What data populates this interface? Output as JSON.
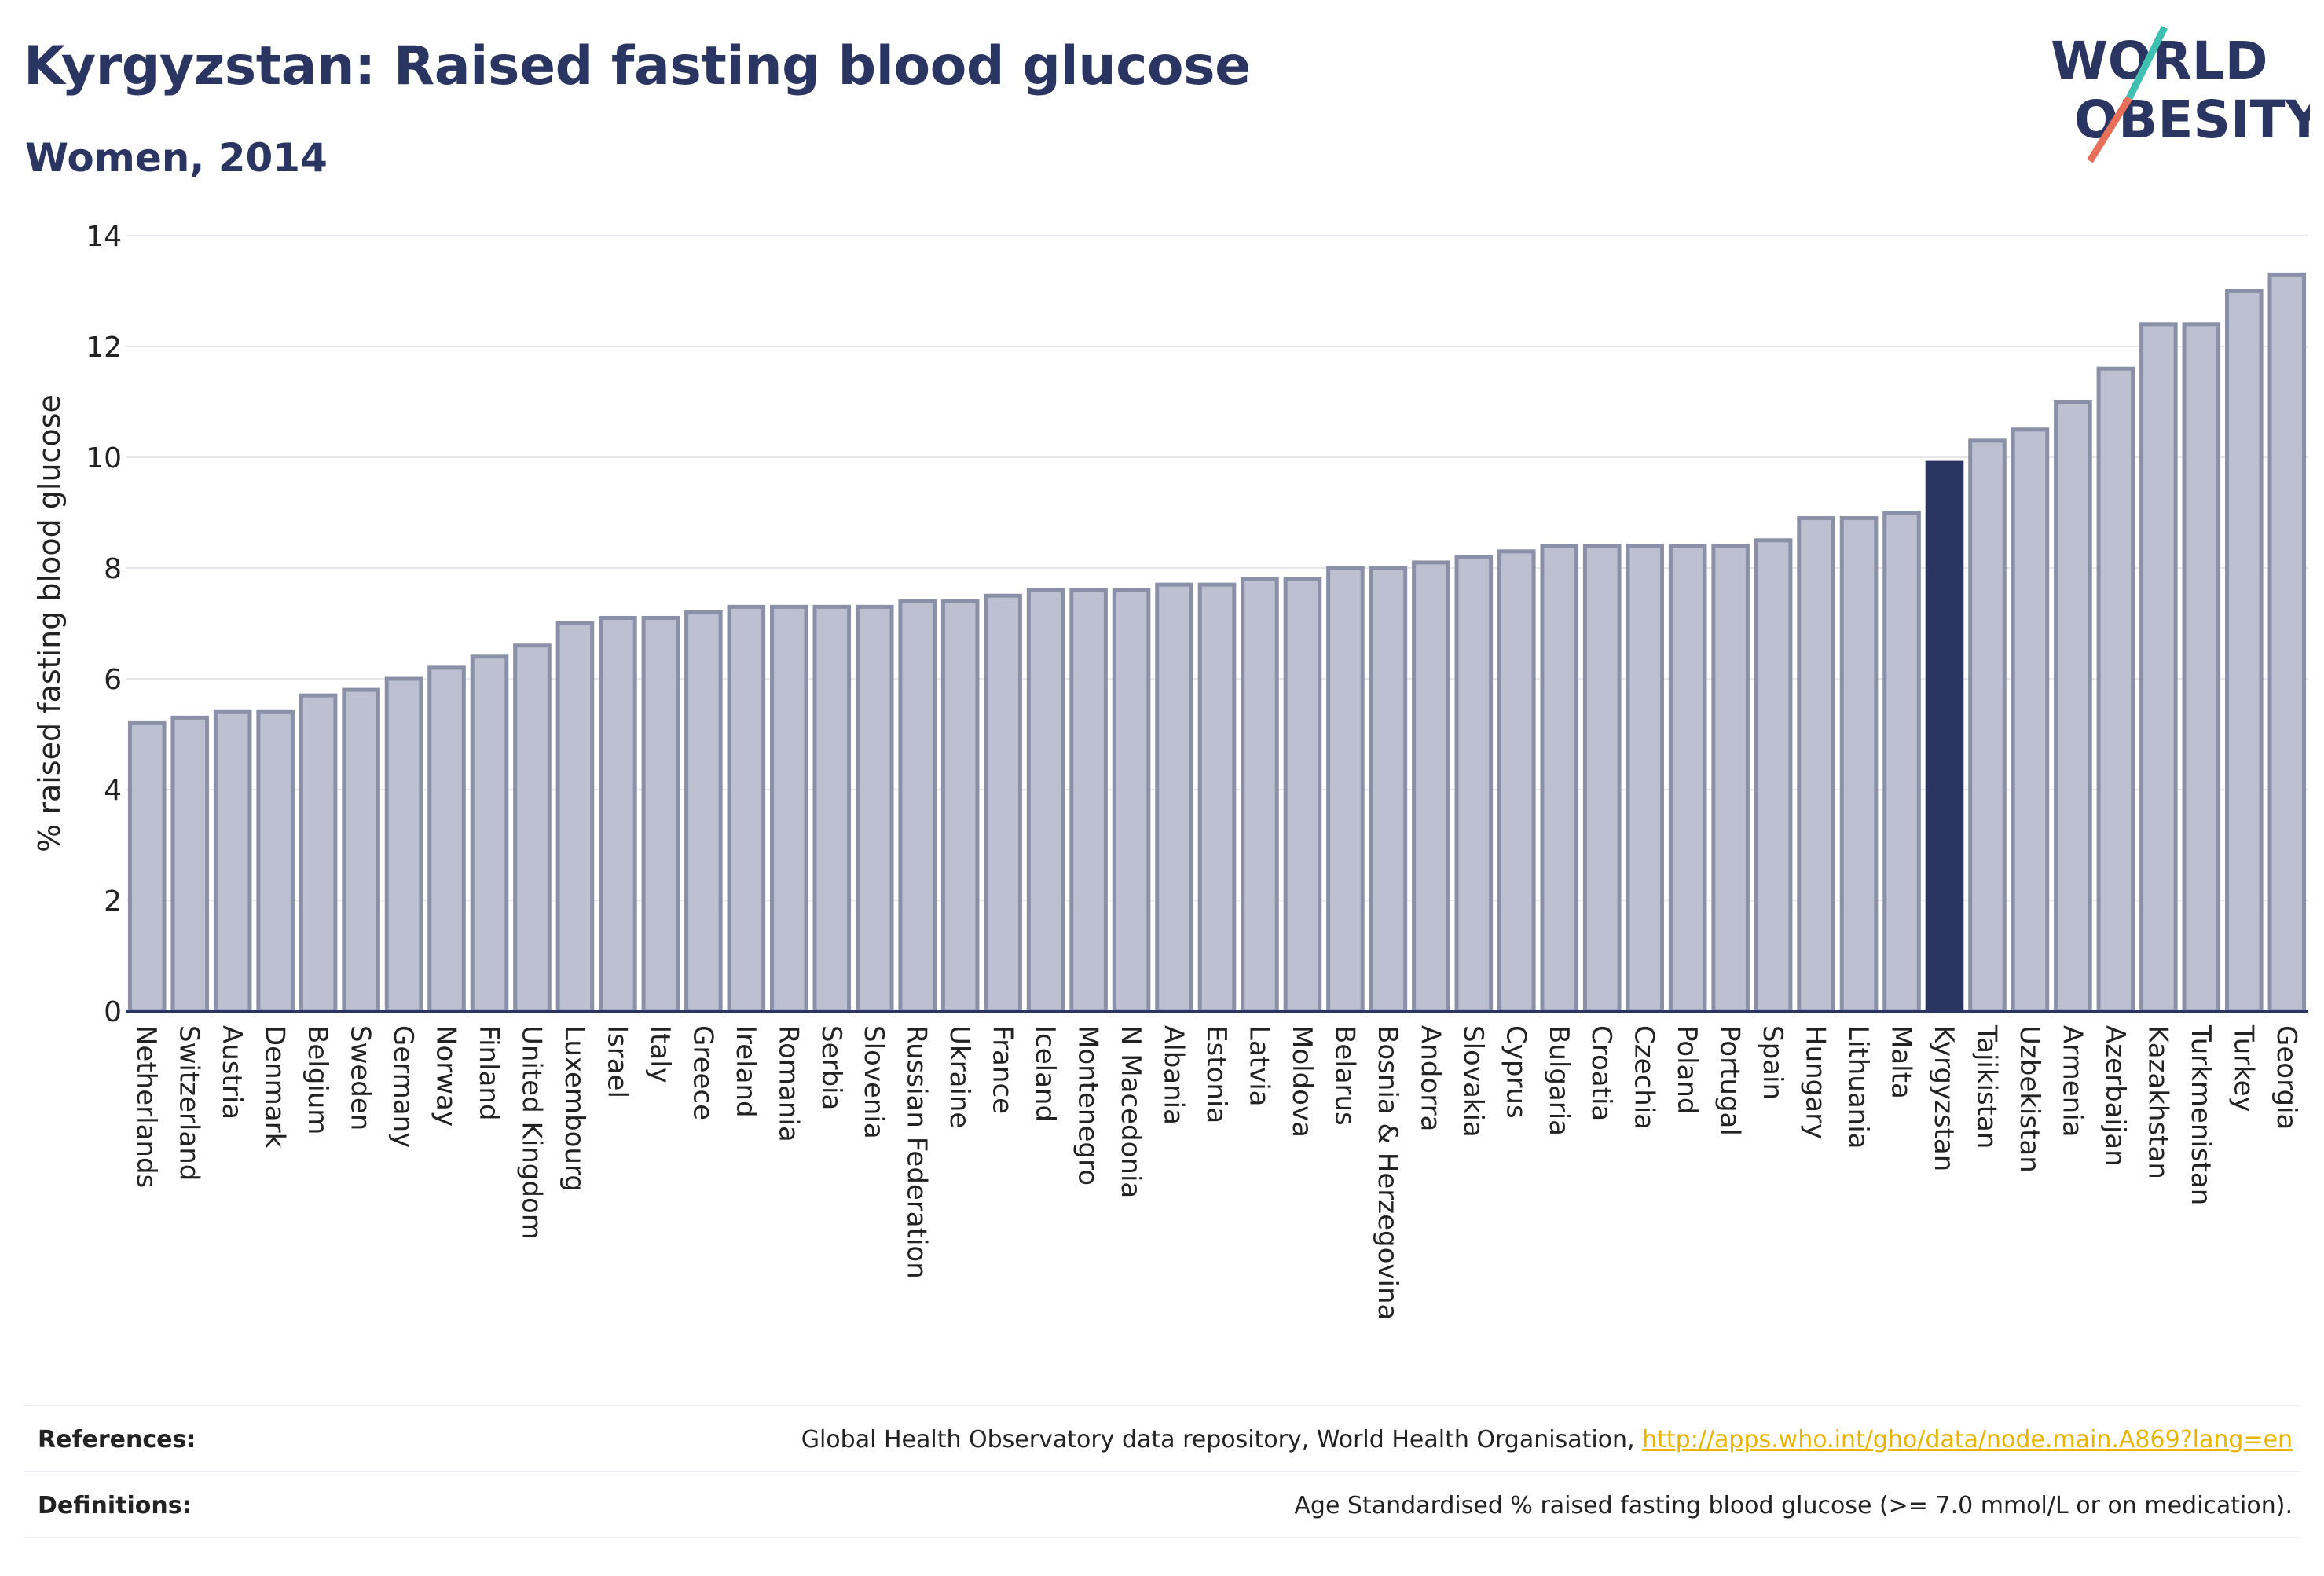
{
  "header": {
    "title": "Kyrgyzstan: Raised fasting blood glucose",
    "subtitle": "Women, 2014",
    "logo_line1": "WORLD",
    "logo_line2": "OBESITY"
  },
  "chart_data": {
    "type": "bar",
    "title": "Kyrgyzstan: Raised fasting blood glucose",
    "subtitle": "Women, 2014",
    "xlabel": "",
    "ylabel": "% raised fasting blood glucose",
    "ylim": [
      0,
      14
    ],
    "yticks": [
      0,
      2,
      4,
      6,
      8,
      10,
      12,
      14
    ],
    "grid": true,
    "highlight": "Kyrgyzstan",
    "colors": {
      "default_fill": "#bcc0d0",
      "default_stroke": "#8a90a8",
      "highlight_fill": "#2a3561",
      "gridline": "#e6e6ee",
      "axis": "#2a3561"
    },
    "categories": [
      "Netherlands",
      "Switzerland",
      "Austria",
      "Denmark",
      "Belgium",
      "Sweden",
      "Germany",
      "Norway",
      "Finland",
      "United Kingdom",
      "Luxembourg",
      "Israel",
      "Italy",
      "Greece",
      "Ireland",
      "Romania",
      "Serbia",
      "Slovenia",
      "Russian Federation",
      "Ukraine",
      "France",
      "Iceland",
      "Montenegro",
      "N Macedonia",
      "Albania",
      "Estonia",
      "Latvia",
      "Moldova",
      "Belarus",
      "Bosnia & Herzegovina",
      "Andorra",
      "Slovakia",
      "Cyprus",
      "Bulgaria",
      "Croatia",
      "Czechia",
      "Poland",
      "Portugal",
      "Spain",
      "Hungary",
      "Lithuania",
      "Malta",
      "Kyrgyzstan",
      "Tajikistan",
      "Uzbekistan",
      "Armenia",
      "Azerbaijan",
      "Kazakhstan",
      "Turkmenistan",
      "Turkey",
      "Georgia"
    ],
    "values": [
      5.2,
      5.3,
      5.4,
      5.4,
      5.7,
      5.8,
      6.0,
      6.2,
      6.4,
      6.6,
      7.0,
      7.1,
      7.1,
      7.2,
      7.3,
      7.3,
      7.3,
      7.3,
      7.4,
      7.4,
      7.5,
      7.6,
      7.6,
      7.6,
      7.7,
      7.7,
      7.8,
      7.8,
      8.0,
      8.0,
      8.1,
      8.2,
      8.3,
      8.4,
      8.4,
      8.4,
      8.4,
      8.4,
      8.5,
      8.9,
      8.9,
      9.0,
      9.9,
      10.3,
      10.5,
      11.0,
      11.6,
      12.4,
      12.4,
      13.0,
      13.3
    ]
  },
  "footer": {
    "references_label": "References:",
    "references_text": "Global Health Observatory data repository, World Health Organisation, ",
    "references_link": "http://apps.who.int/gho/data/node.main.A869?lang=en",
    "definitions_label": "Definitions:",
    "definitions_text": "Age Standardised % raised fasting blood glucose (>= 7.0 mmol/L or on medication)."
  }
}
